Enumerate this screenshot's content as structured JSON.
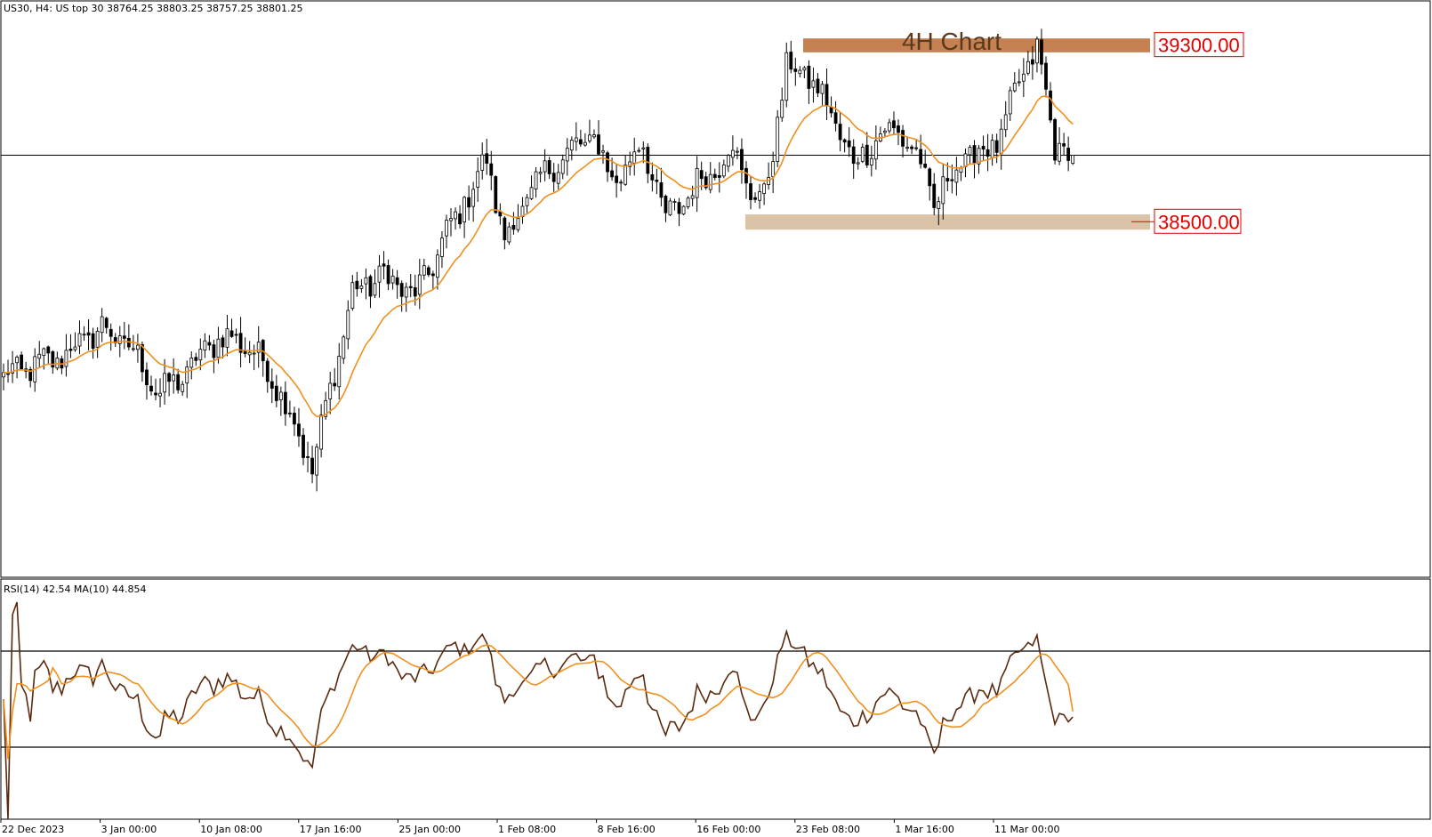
{
  "header": {
    "symbol_info": "US30, H4:  US top 30  38764.25 38803.25 38757.25 38801.25"
  },
  "chart_data": [
    {
      "type": "candlestick",
      "title": "4H Chart",
      "symbol": "US30",
      "timeframe": "H4",
      "ylim": [
        36890,
        39500
      ],
      "current_price": 38801.25,
      "ohlc_last": {
        "open": 38764.25,
        "high": 38803.25,
        "low": 38757.25,
        "close": 38801.25
      },
      "levels": [
        {
          "name": "resistance",
          "label": "39300.00",
          "value": 39300,
          "color": "#c27a48"
        },
        {
          "name": "support",
          "label": "38500.00",
          "value": 38500,
          "color": "#d9c0a3"
        }
      ],
      "x_tick_labels": [
        "22 Dec 2023",
        "3 Jan 00:00",
        "10 Jan 08:00",
        "17 Jan 16:00",
        "25 Jan 00:00",
        "1 Feb 08:00",
        "8 Feb 16:00",
        "16 Feb 00:00",
        "23 Feb 08:00",
        "1 Mar 16:00",
        "11 Mar 00:00"
      ],
      "close_path_keypoints": [
        [
          0,
          37800
        ],
        [
          12,
          37880
        ],
        [
          22,
          38020
        ],
        [
          28,
          37940
        ],
        [
          35,
          37720
        ],
        [
          40,
          37800
        ],
        [
          48,
          37980
        ],
        [
          55,
          37940
        ],
        [
          62,
          37730
        ],
        [
          69,
          37380
        ],
        [
          72,
          37650
        ],
        [
          78,
          38180
        ],
        [
          85,
          38260
        ],
        [
          92,
          38160
        ],
        [
          100,
          38480
        ],
        [
          108,
          38780
        ],
        [
          112,
          38420
        ],
        [
          118,
          38640
        ],
        [
          124,
          38780
        ],
        [
          132,
          38890
        ],
        [
          136,
          38680
        ],
        [
          143,
          38850
        ],
        [
          148,
          38510
        ],
        [
          155,
          38670
        ],
        [
          160,
          38760
        ],
        [
          163,
          38840
        ],
        [
          167,
          38630
        ],
        [
          170,
          38600
        ],
        [
          175,
          39200
        ],
        [
          180,
          39160
        ],
        [
          185,
          38990
        ],
        [
          190,
          38760
        ],
        [
          195,
          38880
        ],
        [
          200,
          38920
        ],
        [
          205,
          38760
        ],
        [
          208,
          38580
        ],
        [
          214,
          38780
        ],
        [
          219,
          38820
        ],
        [
          223,
          38880
        ],
        [
          227,
          39140
        ],
        [
          231,
          39280
        ],
        [
          235,
          38850
        ],
        [
          239,
          38801
        ]
      ],
      "ma_lag": 8,
      "candle_count": 240
    },
    {
      "type": "line",
      "title": "RSI(14) 42.54 MA(10) 44.854",
      "series": [
        {
          "name": "RSI(14)",
          "last": 42.54,
          "color": "#5a2a10"
        },
        {
          "name": "MA(10)",
          "last": 44.854,
          "color": "#f0901e"
        }
      ],
      "ylim": [
        0,
        100
      ],
      "levels": [
        70,
        30
      ]
    }
  ],
  "colors": {
    "candle": "#000000",
    "price_ma": "#f0901e",
    "rsi": "#5a2a10",
    "rsi_ma": "#f0901e",
    "level_text": "#e00000"
  }
}
